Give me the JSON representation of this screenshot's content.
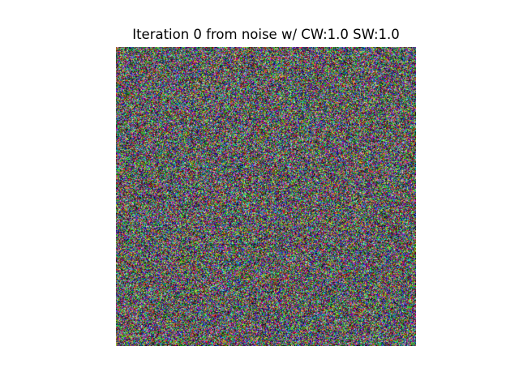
{
  "figure": {
    "title": "Iteration 0 from noise w/ CW:1.0 SW:1.0"
  },
  "image": {
    "content": "random-rgb-noise",
    "background": "#ffffff"
  }
}
